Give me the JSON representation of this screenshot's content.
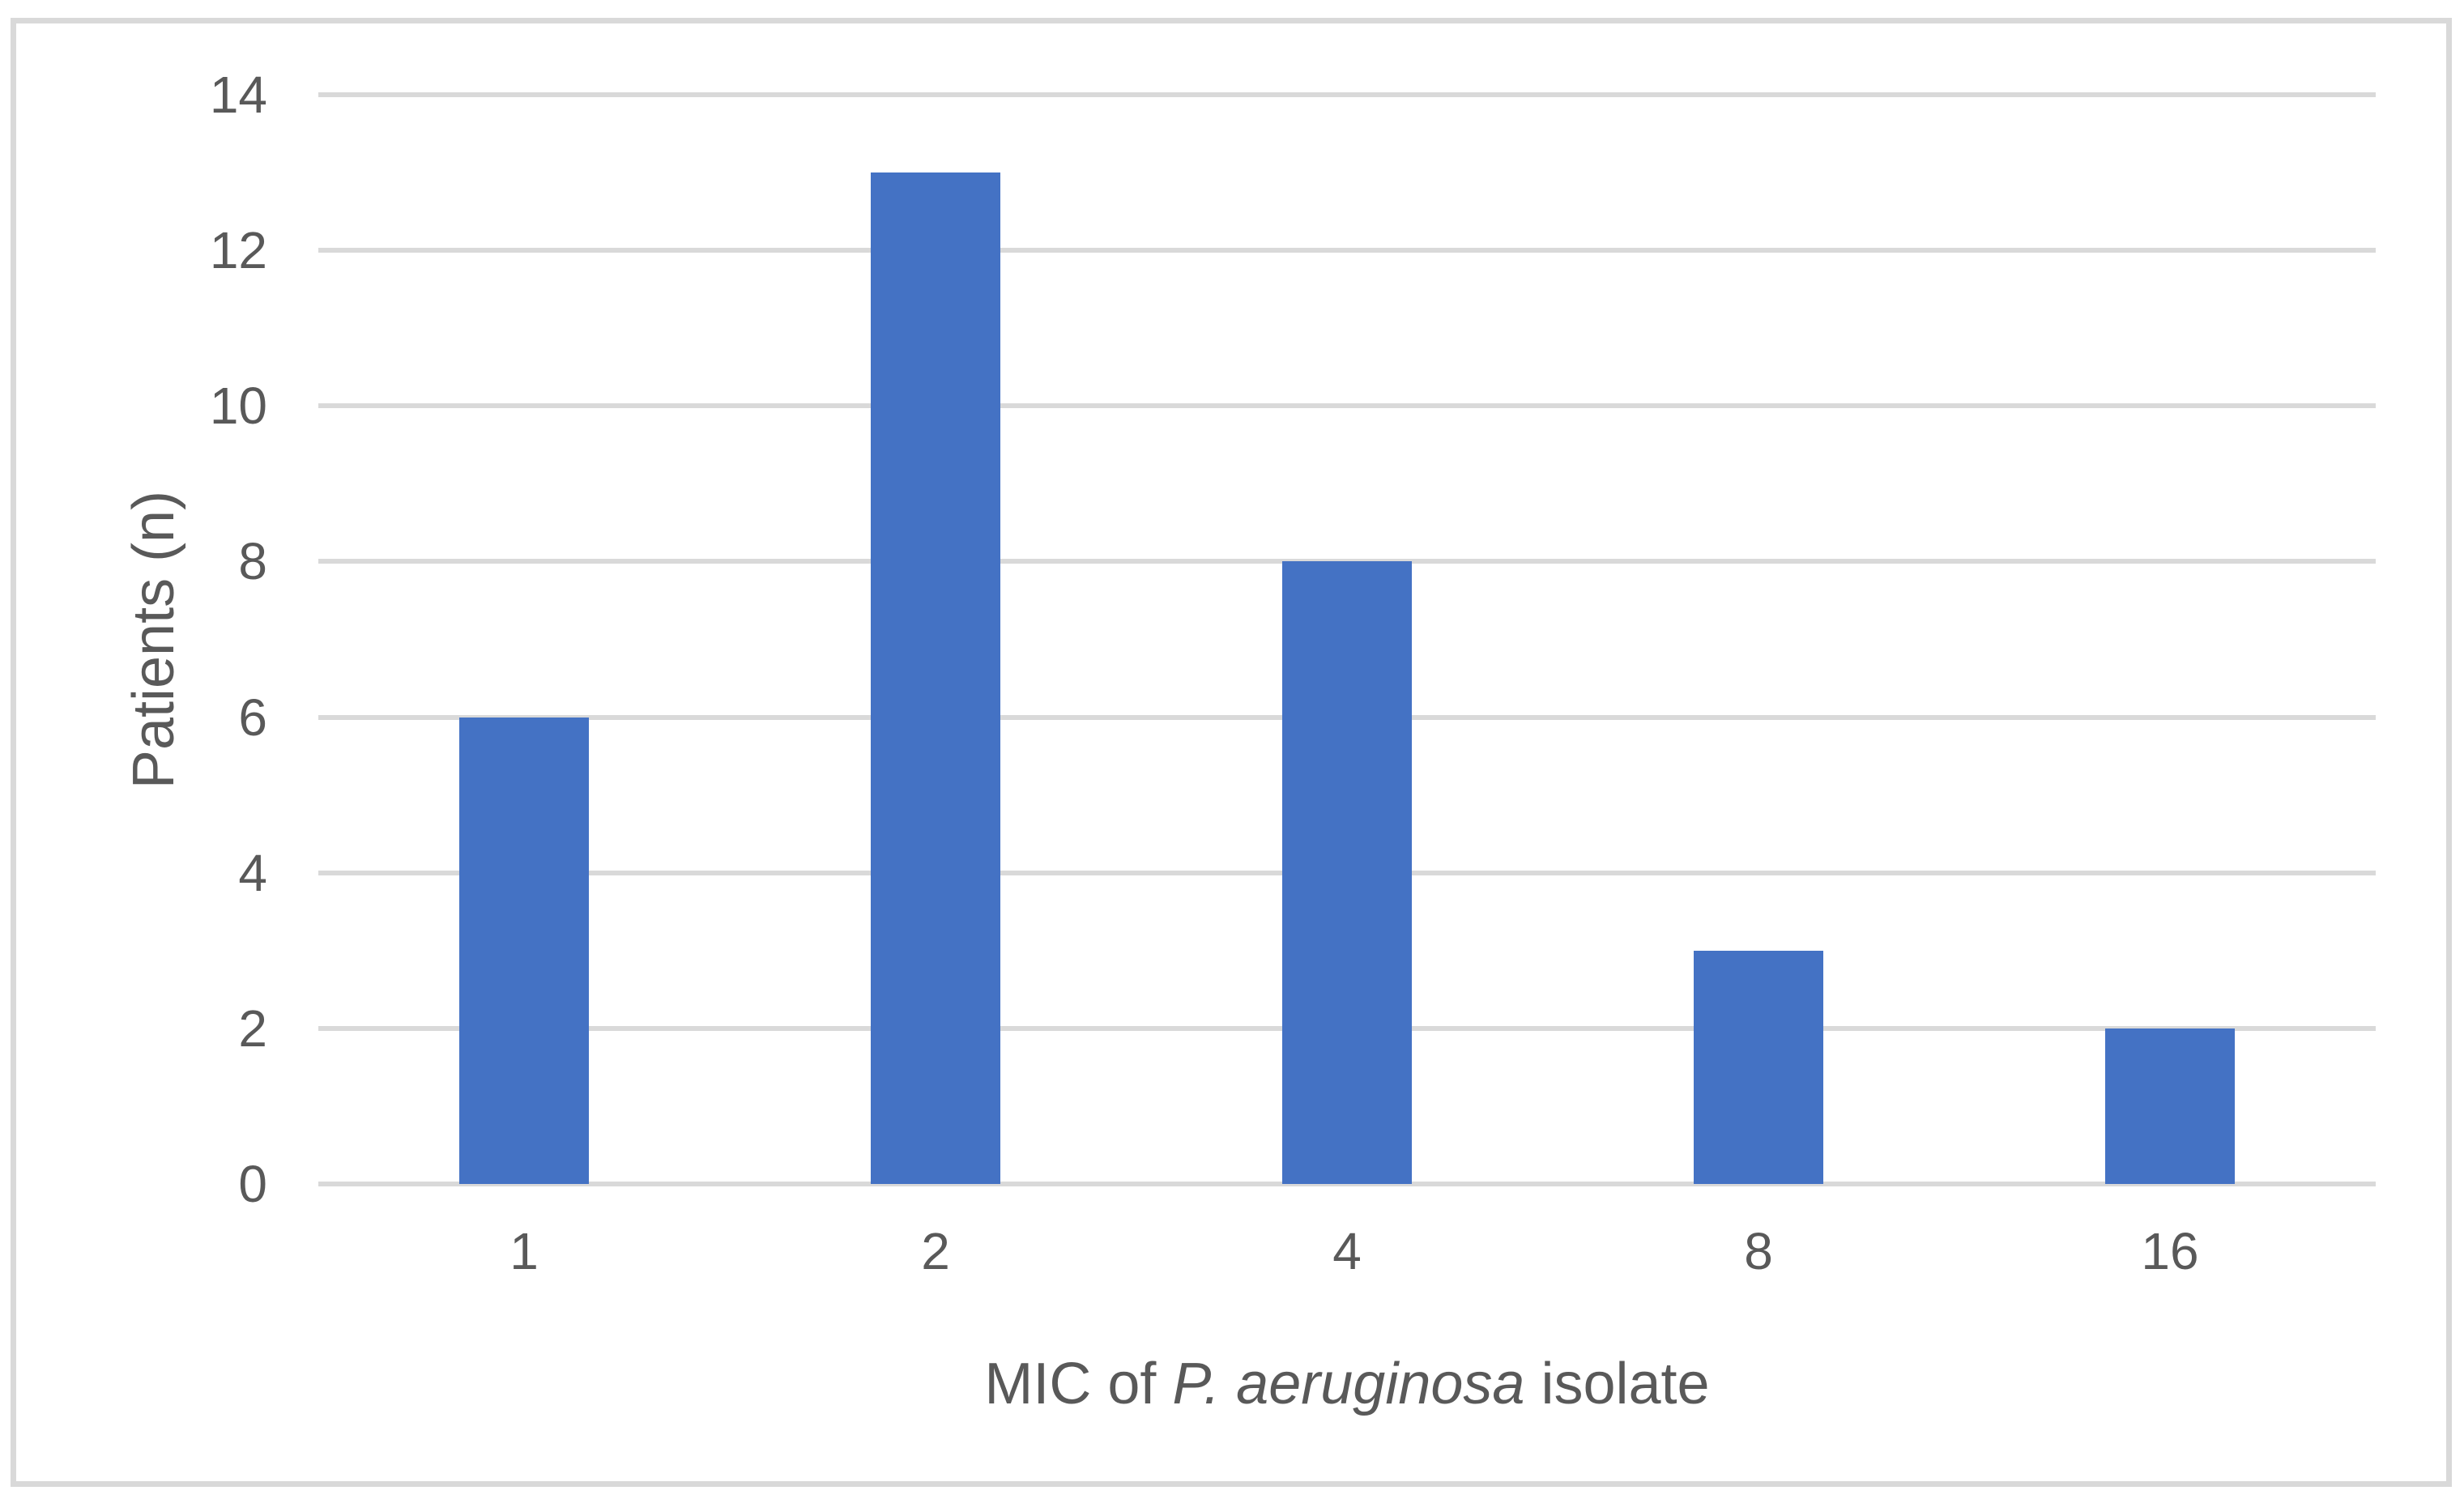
{
  "chart_data": {
    "type": "bar",
    "categories": [
      "1",
      "2",
      "4",
      "8",
      "16"
    ],
    "values": [
      6,
      13,
      8,
      3,
      2
    ],
    "title": "",
    "xlabel": "MIC of P. aeruginosa isolate",
    "xlabel_parts": {
      "prefix": "MIC of ",
      "italic": "P. aeruginosa",
      "suffix": " isolate"
    },
    "ylabel": "Patients (n)",
    "ylim": [
      0,
      14
    ],
    "yticks": [
      0,
      2,
      4,
      6,
      8,
      10,
      12,
      14
    ],
    "grid": "horizontal-only",
    "legend": "none",
    "colors": {
      "bar": "#4472c4",
      "gridline": "#d9d9d9",
      "axis_line": "#d9d9d9",
      "frame_border": "#d9d9d9",
      "text": "#595959",
      "background": "#ffffff"
    }
  }
}
